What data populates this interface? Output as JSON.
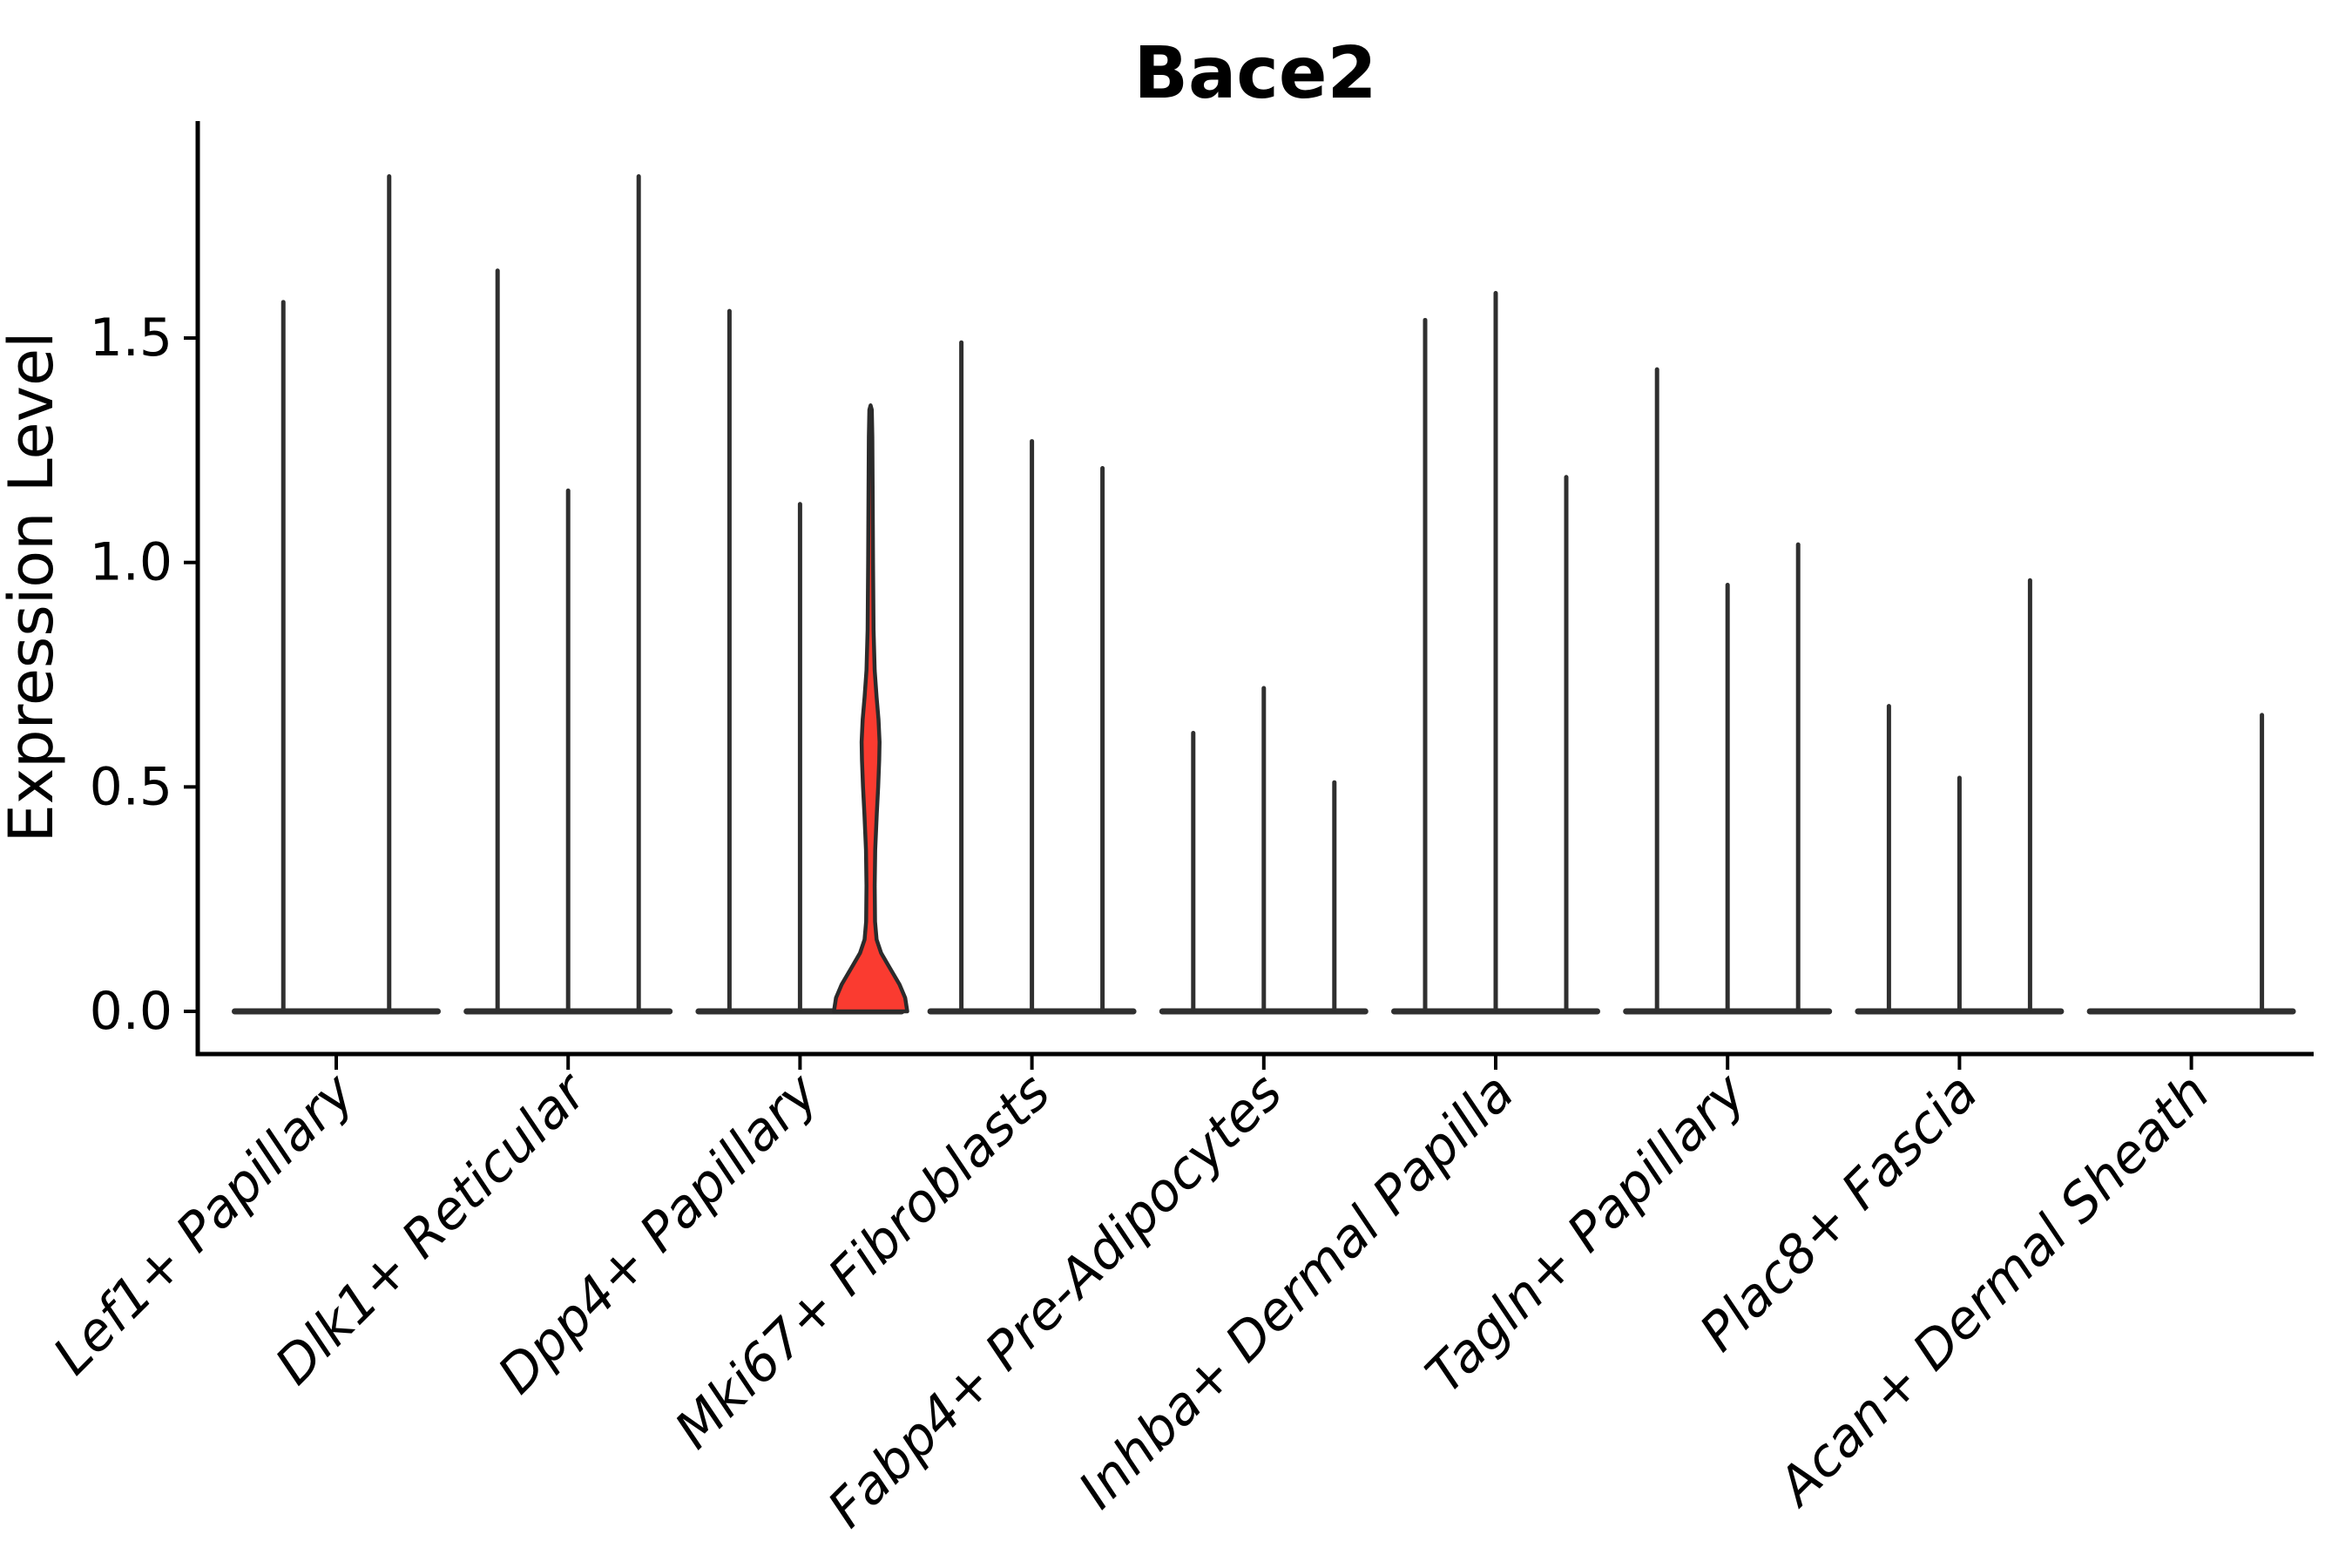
{
  "chart_data": {
    "type": "violin",
    "title": "Bace2",
    "ylabel": "Expression Level",
    "xlabel": "",
    "background_color": "#ffffff",
    "axis_color": "#000000",
    "violin_line_color": "#2f2f2f",
    "highlight_fill_color": "#fa3b30",
    "highlight_stroke_color": "#2b2b2b",
    "grid": false,
    "legend": "none",
    "x_tick_rotation_degrees": 45,
    "ylim": [
      -0.1,
      1.98
    ],
    "yticks": [
      {
        "value": 0.0,
        "label": "0.0"
      },
      {
        "value": 0.5,
        "label": "0.5"
      },
      {
        "value": 1.0,
        "label": "1.0"
      },
      {
        "value": 1.5,
        "label": "1.5"
      }
    ],
    "categories": [
      "Lef1+ Papillary",
      "Dlk1+ Reticular",
      "Dpp4+ Papillary",
      "Mki67+ Fibroblasts",
      "Fabp4+ Pre-Adipocytes",
      "Inhba+ Dermal Papilla",
      "Tagln+ Papillary",
      "Plac8+ Fascia",
      "Acan+ Dermal Sheath"
    ],
    "groups": [
      {
        "category": "Lef1+ Papillary",
        "violins": [
          {
            "max": 1.58
          },
          {
            "max": 1.86
          }
        ]
      },
      {
        "category": "Dlk1+ Reticular",
        "violins": [
          {
            "max": 1.65
          },
          {
            "max": 1.16
          },
          {
            "max": 1.86
          }
        ]
      },
      {
        "category": "Dpp4+ Papillary",
        "violins": [
          {
            "max": 1.56
          },
          {
            "max": 1.13
          },
          {
            "max": 1.35,
            "highlight": true
          }
        ]
      },
      {
        "category": "Mki67+ Fibroblasts",
        "violins": [
          {
            "max": 1.49
          },
          {
            "max": 1.27
          },
          {
            "max": 1.21
          }
        ]
      },
      {
        "category": "Fabp4+ Pre-Adipocytes",
        "violins": [
          {
            "max": 0.62
          },
          {
            "max": 0.72
          },
          {
            "max": 0.51
          }
        ]
      },
      {
        "category": "Inhba+ Dermal Papilla",
        "violins": [
          {
            "max": 1.54
          },
          {
            "max": 1.6
          },
          {
            "max": 1.19
          }
        ]
      },
      {
        "category": "Tagln+ Papillary",
        "violins": [
          {
            "max": 1.43
          },
          {
            "max": 0.95
          },
          {
            "max": 1.04
          }
        ]
      },
      {
        "category": "Plac8+ Fascia",
        "violins": [
          {
            "max": 0.68
          },
          {
            "max": 0.52
          },
          {
            "max": 0.96
          }
        ]
      },
      {
        "category": "Acan+ Dermal Sheath",
        "violins": [
          {
            "max": 0.0
          },
          {
            "max": 0.0
          },
          {
            "max": 0.66
          }
        ]
      }
    ],
    "highlight_violin": {
      "category": "Dpp4+ Papillary",
      "position_in_group": 3,
      "max": 1.35,
      "density_bulge": {
        "from": 0.44,
        "to": 0.76,
        "peak_at": 0.6
      },
      "base_bump_top": 0.17
    },
    "highlight_profile": [
      [
        0.0,
        1.04
      ],
      [
        0.03,
        0.98
      ],
      [
        0.06,
        0.82
      ],
      [
        0.1,
        0.52
      ],
      [
        0.13,
        0.3
      ],
      [
        0.16,
        0.17
      ],
      [
        0.2,
        0.125
      ],
      [
        0.28,
        0.115
      ],
      [
        0.36,
        0.13
      ],
      [
        0.44,
        0.175
      ],
      [
        0.5,
        0.215
      ],
      [
        0.56,
        0.245
      ],
      [
        0.6,
        0.255
      ],
      [
        0.65,
        0.225
      ],
      [
        0.7,
        0.17
      ],
      [
        0.76,
        0.115
      ],
      [
        0.85,
        0.085
      ],
      [
        1.0,
        0.07
      ],
      [
        1.15,
        0.06
      ],
      [
        1.28,
        0.05
      ],
      [
        1.34,
        0.035
      ],
      [
        1.35,
        0.0
      ]
    ]
  }
}
